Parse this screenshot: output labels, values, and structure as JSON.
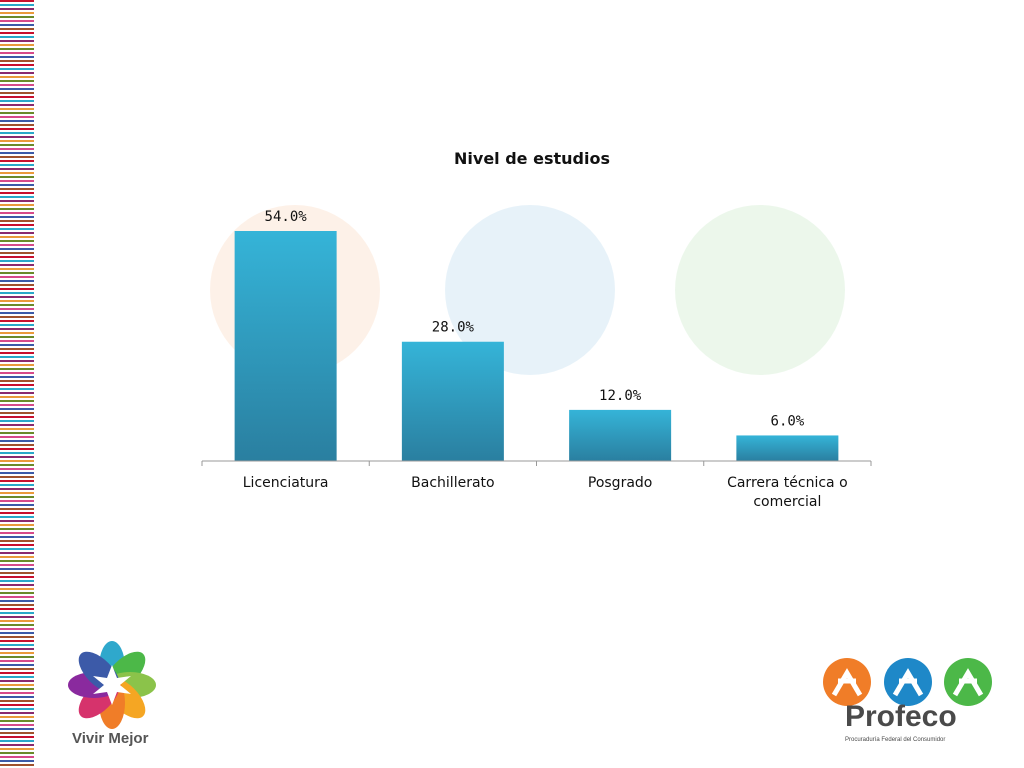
{
  "chart_data": {
    "type": "bar",
    "title": "Nivel de estudios",
    "categories": [
      "Licenciatura",
      "Bachillerato",
      "Posgrado",
      "Carrera técnica o comercial"
    ],
    "category_lines": [
      [
        "Licenciatura"
      ],
      [
        "Bachillerato"
      ],
      [
        "Posgrado"
      ],
      [
        "Carrera técnica o",
        "comercial"
      ]
    ],
    "values": [
      54.0,
      28.0,
      12.0,
      6.0
    ],
    "value_labels": [
      "54.0%",
      "28.0%",
      "12.0%",
      "6.0%"
    ],
    "unit": "%",
    "ylim": [
      0,
      54
    ],
    "grid": false,
    "bar_color": "#2fa8cc",
    "bar_color_dark": "#2a7fa0"
  },
  "logos": {
    "left_text": "Vivir Mejor",
    "right_name": "Profeco",
    "right_subtitle": "Procuraduría Federal del Consumidor"
  },
  "colors": {
    "profeco_orange": "#f07d28",
    "profeco_blue": "#1e88c8",
    "profeco_green": "#4cb848"
  }
}
